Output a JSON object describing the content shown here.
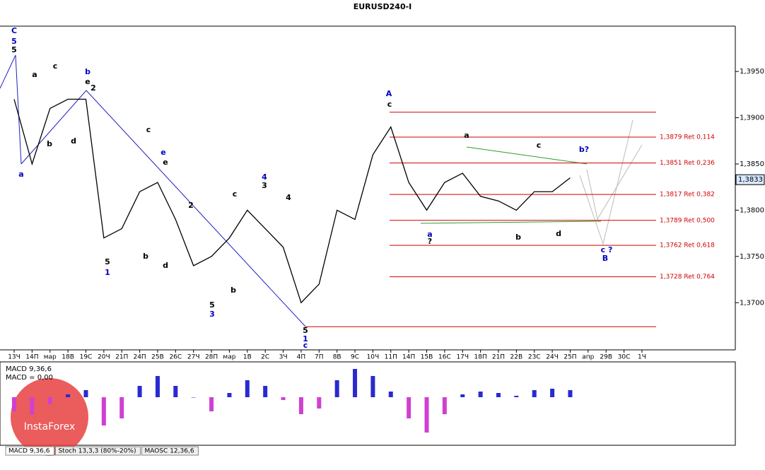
{
  "chart_data": {
    "type": "line",
    "title": "EURUSD240-I",
    "categories": [
      "13Ч",
      "14П",
      "мар",
      "18В",
      "19С",
      "20Ч",
      "21П",
      "24П",
      "25В",
      "26С",
      "27Ч",
      "28П",
      "мар",
      "1В",
      "2С",
      "3Ч",
      "4П",
      "7П",
      "8В",
      "9С",
      "10Ч",
      "11П",
      "14П",
      "15В",
      "16С",
      "17Ч",
      "18П",
      "21П",
      "22В",
      "23С",
      "24Ч",
      "25П",
      "апр",
      "29В",
      "30С",
      "1Ч"
    ],
    "series": [
      {
        "name": "EURUSD",
        "color": "#000000",
        "values": [
          1.392,
          1.385,
          1.391,
          1.392,
          1.392,
          1.377,
          1.378,
          1.382,
          1.383,
          1.379,
          1.374,
          1.375,
          1.377,
          1.38,
          1.378,
          1.376,
          1.37,
          1.372,
          1.38,
          1.379,
          1.386,
          1.389,
          1.383,
          1.38,
          1.383,
          1.384,
          1.3815,
          1.381,
          1.38,
          1.382,
          1.382,
          1.3835,
          null,
          null,
          null,
          null
        ]
      }
    ],
    "ylim": [
      1.3649,
      1.3999
    ],
    "yticks": [
      {
        "value": 1.37,
        "label": "1,3700"
      },
      {
        "value": 1.375,
        "label": "1,3750"
      },
      {
        "value": 1.38,
        "label": "1,3800"
      },
      {
        "value": 1.385,
        "label": "1,3850"
      },
      {
        "value": 1.39,
        "label": "1,3900"
      },
      {
        "value": 1.395,
        "label": "1,3950"
      }
    ],
    "last_price": {
      "value": 1.3833,
      "label": "1,3833"
    },
    "levels": [
      1.3906,
      {
        "value": 1.3879,
        "label": "1,3879 Ret 0,114"
      },
      {
        "value": 1.3851,
        "label": "1,3851 Ret 0,236"
      },
      {
        "value": 1.3817,
        "label": "1,3817 Ret 0,382"
      },
      {
        "value": 1.3789,
        "label": "1,3789 Ret 0,500"
      },
      {
        "value": 1.3762,
        "label": "1,3762 Ret 0,618"
      },
      {
        "value": 1.3728,
        "label": "1,3728 Ret 0,764"
      },
      1.3674
    ],
    "annotations": [
      "C",
      "5",
      "5",
      "a",
      "c",
      "b",
      "b",
      "e",
      "2",
      "d",
      "a",
      "c",
      "2",
      "e",
      "d",
      "5",
      "1",
      "b",
      "4",
      "3",
      "5",
      "3",
      "b",
      "4",
      "e",
      "c",
      "5",
      "1",
      "c",
      "A",
      "c",
      "a",
      "b?",
      "c",
      "B",
      "c ?",
      "a",
      "?",
      "d",
      "b"
    ],
    "indicator": {
      "title": "MACD 9,36,6",
      "value_text": "MACD = 0,00",
      "ylim": [
        -0.0033,
        0.00235
      ],
      "values": [
        -0.001,
        -0.0012,
        -0.0005,
        0.0002,
        0.0005,
        -0.002,
        -0.0015,
        0.0008,
        0.0015,
        0.0008,
        0.0,
        -0.001,
        0.0003,
        0.0012,
        0.0008,
        -0.0002,
        -0.0012,
        -0.0008,
        0.0012,
        0.002,
        0.0015,
        0.0004,
        -0.0015,
        -0.0025,
        -0.0012,
        0.0002,
        0.0004,
        0.0003,
        0.0001,
        0.0005,
        0.0006,
        0.0005,
        null,
        null,
        null,
        null
      ]
    },
    "tabs": [
      "MACD 9,36,6",
      "Stoch 13,3,3 (80%-20%)",
      "MAOSC 12,36,6"
    ],
    "watermark": "InstaForex"
  }
}
